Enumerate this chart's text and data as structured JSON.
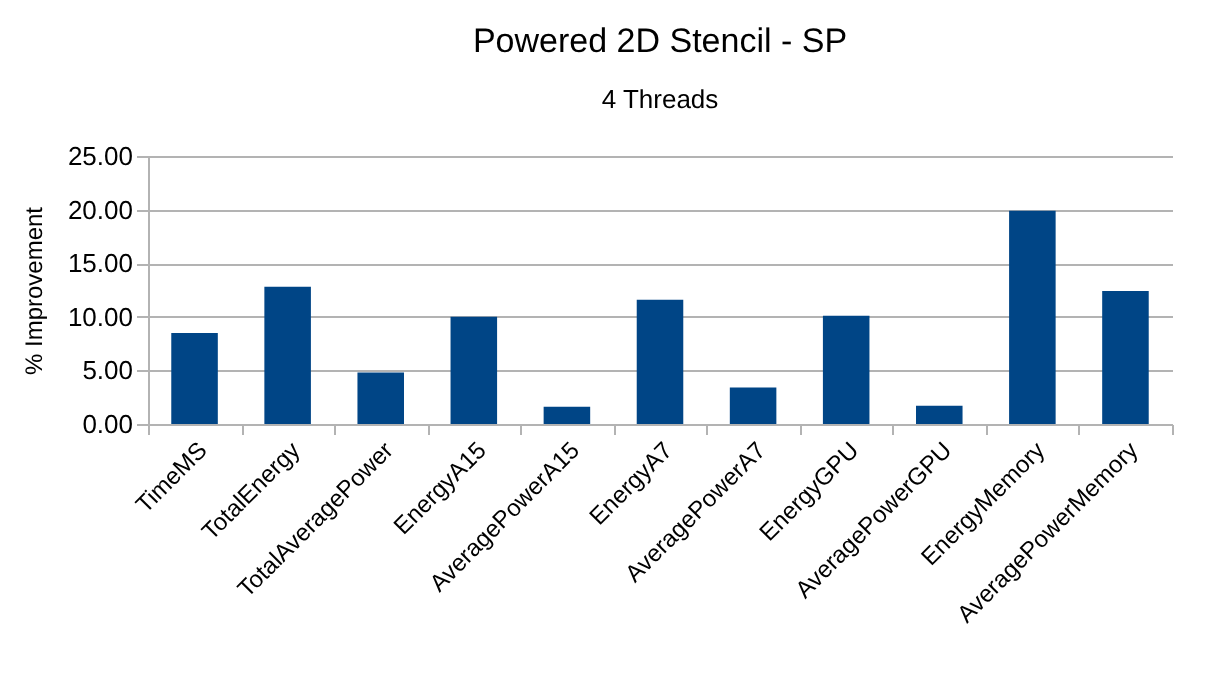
{
  "chart_data": {
    "type": "bar",
    "title": "Powered 2D Stencil - SP",
    "subtitle": "4 Threads",
    "ylabel": "% Improvement",
    "categories": [
      "TimeMS",
      "TotalEnergy",
      "TotalAveragePower",
      "EnergyA15",
      "AveragePowerA15",
      "EnergyA7",
      "AveragePowerA7",
      "EnergyGPU",
      "AveragePowerGPU",
      "EnergyMemory",
      "AveragePowerMemory"
    ],
    "values": [
      8.5,
      12.8,
      4.8,
      10.0,
      1.6,
      11.6,
      3.4,
      10.1,
      1.7,
      19.9,
      12.4
    ],
    "color": "#004586",
    "ylim": [
      0,
      25
    ],
    "yticks": [
      {
        "value": 0,
        "label": "0.00"
      },
      {
        "value": 5,
        "label": "5.00"
      },
      {
        "value": 10,
        "label": "10.00"
      },
      {
        "value": 15,
        "label": "15.00"
      },
      {
        "value": 20,
        "label": "20.00"
      },
      {
        "value": 25,
        "label": "25.00"
      }
    ],
    "grid": "y"
  }
}
